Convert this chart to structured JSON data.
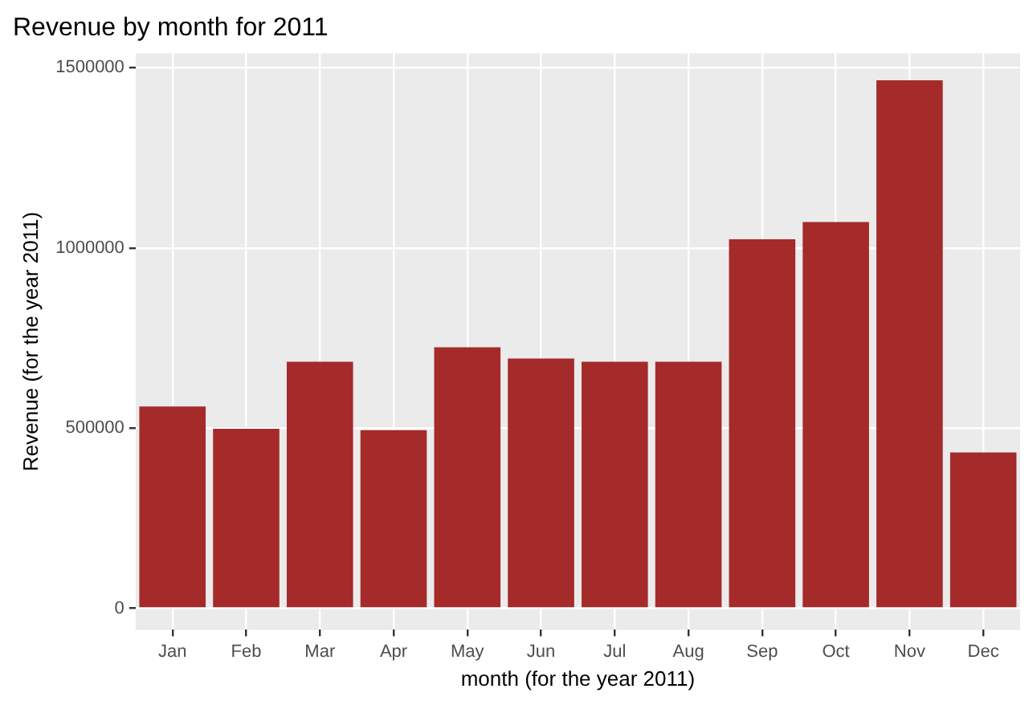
{
  "chart_data": {
    "type": "bar",
    "title": "Revenue by month for 2011",
    "xlabel": "month (for the year 2011)",
    "ylabel": "Revenue (for the year 2011)",
    "categories": [
      "Jan",
      "Feb",
      "Mar",
      "Apr",
      "May",
      "Jun",
      "Jul",
      "Aug",
      "Sep",
      "Oct",
      "Nov",
      "Dec"
    ],
    "values": [
      560000,
      498000,
      684000,
      494000,
      724000,
      693000,
      684000,
      684000,
      1024000,
      1072000,
      1465000,
      432000
    ],
    "color": "#a52a2a",
    "ylim": [
      -60000,
      1540000
    ],
    "yticks": [
      0,
      500000,
      1000000,
      1500000
    ],
    "grid": true
  }
}
